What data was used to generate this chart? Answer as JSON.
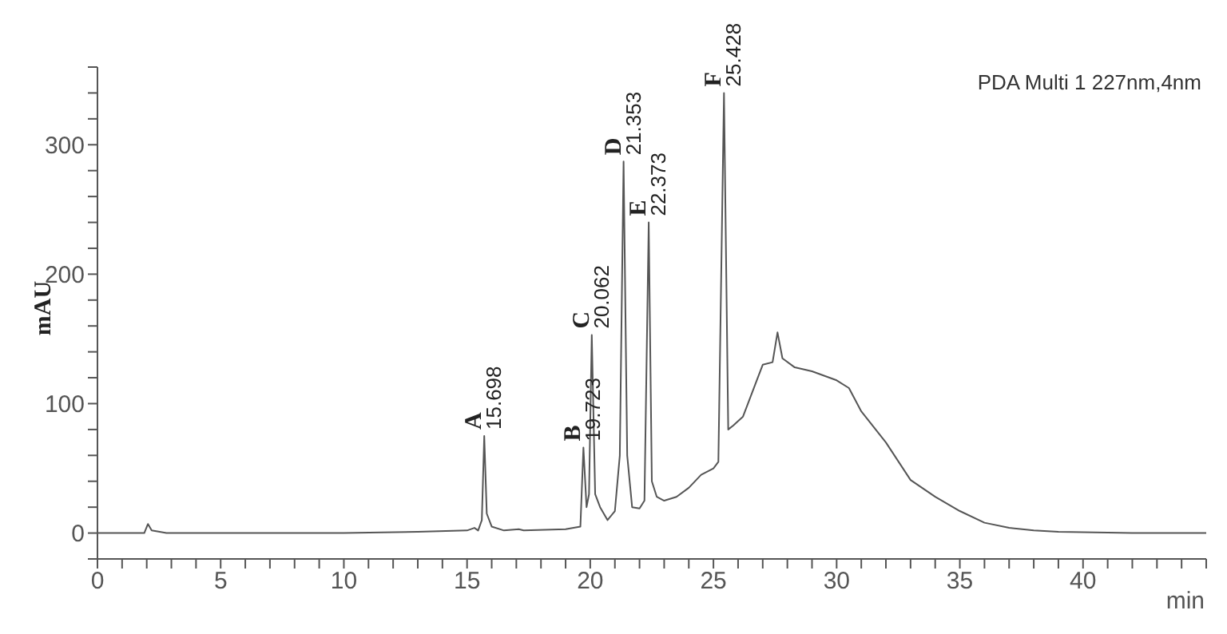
{
  "chart_data": {
    "type": "line",
    "xlabel": "min",
    "ylabel": "mAU",
    "x": [
      0,
      1.9,
      2.05,
      2.2,
      2.8,
      10,
      13,
      15,
      15.3,
      15.45,
      15.6,
      15.698,
      15.8,
      16,
      16.5,
      17.1,
      17.3,
      19,
      19.6,
      19.723,
      19.85,
      19.95,
      20.062,
      20.2,
      20.4,
      20.7,
      21.0,
      21.2,
      21.353,
      21.5,
      21.7,
      22.0,
      22.2,
      22.373,
      22.5,
      22.7,
      23,
      23.5,
      24,
      24.5,
      25,
      25.2,
      25.428,
      25.6,
      25.8,
      26.2,
      26.7,
      27,
      27.4,
      27.6,
      27.8,
      28.3,
      29,
      30,
      30.5,
      31,
      32,
      33,
      34,
      35,
      36,
      37,
      38,
      39,
      42,
      45
    ],
    "series": [
      {
        "color": "#555555",
        "values": [
          0,
          0,
          7,
          2,
          0,
          0,
          1,
          2,
          4,
          2,
          10,
          75,
          15,
          5,
          2,
          3,
          2,
          3,
          5,
          66,
          20,
          30,
          153,
          30,
          20,
          10,
          17,
          60,
          287,
          60,
          20,
          19,
          25,
          240,
          40,
          28,
          25,
          28,
          35,
          45,
          50,
          55,
          340,
          80,
          83,
          90,
          115,
          130,
          132,
          155,
          135,
          128,
          125,
          118,
          112,
          94,
          70,
          41,
          28,
          17,
          8,
          4,
          2,
          1,
          0,
          0
        ]
      }
    ],
    "xlim": [
      0,
      45
    ],
    "xticks": [
      0,
      {
        "value": 1,
        "label": null
      },
      {
        "value": 2,
        "label": null
      },
      {
        "value": 3,
        "label": null
      },
      {
        "value": 4,
        "label": null
      },
      5,
      {
        "value": 6,
        "label": null
      },
      {
        "value": 7,
        "label": null
      },
      {
        "value": 8,
        "label": null
      },
      {
        "value": 9,
        "label": null
      },
      10,
      {
        "value": 11,
        "label": null
      },
      {
        "value": 12,
        "label": null
      },
      {
        "value": 13,
        "label": null
      },
      {
        "value": 14,
        "label": null
      },
      15,
      {
        "value": 16,
        "label": null
      },
      {
        "value": 17,
        "label": null
      },
      {
        "value": 18,
        "label": null
      },
      {
        "value": 19,
        "label": null
      },
      20,
      {
        "value": 21,
        "label": null
      },
      {
        "value": 22,
        "label": null
      },
      {
        "value": 23,
        "label": null
      },
      {
        "value": 24,
        "label": null
      },
      25,
      {
        "value": 26,
        "label": null
      },
      {
        "value": 27,
        "label": null
      },
      {
        "value": 28,
        "label": null
      },
      {
        "value": 29,
        "label": null
      },
      30,
      {
        "value": 31,
        "label": null
      },
      {
        "value": 32,
        "label": null
      },
      {
        "value": 33,
        "label": null
      },
      {
        "value": 34,
        "label": null
      },
      35,
      {
        "value": 36,
        "label": null
      },
      {
        "value": 37,
        "label": null
      },
      {
        "value": 38,
        "label": null
      },
      {
        "value": 39,
        "label": null
      },
      40,
      {
        "value": 41,
        "label": null
      },
      {
        "value": 42,
        "label": null
      },
      {
        "value": 43,
        "label": null
      },
      {
        "value": 44,
        "label": null
      },
      {
        "value": 45,
        "label": null
      }
    ],
    "ylim": [
      -20,
      360
    ],
    "yticks": [
      {
        "value": -20,
        "label": null
      },
      0,
      {
        "value": 20,
        "label": null
      },
      {
        "value": 40,
        "label": null
      },
      {
        "value": 60,
        "label": null
      },
      {
        "value": 80,
        "label": null
      },
      100,
      {
        "value": 120,
        "label": null
      },
      {
        "value": 140,
        "label": null
      },
      {
        "value": 160,
        "label": null
      },
      {
        "value": 180,
        "label": null
      },
      200,
      {
        "value": 220,
        "label": null
      },
      {
        "value": 240,
        "label": null
      },
      {
        "value": 260,
        "label": null
      },
      {
        "value": 280,
        "label": null
      },
      300,
      {
        "value": 320,
        "label": null
      },
      {
        "value": 340,
        "label": null
      },
      {
        "value": 360,
        "label": null
      }
    ],
    "grid": false,
    "marker": "none",
    "line_style": "solid",
    "annotations": [
      "PDA Multi 1 227nm,4nm",
      {
        "text": "A",
        "x": 15.698,
        "y": 75
      },
      {
        "text": "15.698",
        "x": 15.698,
        "y": 75
      },
      {
        "text": "B",
        "x": 19.723,
        "y": 66
      },
      {
        "text": "19.723",
        "x": 19.723,
        "y": 66
      },
      {
        "text": "C",
        "x": 20.062,
        "y": 153
      },
      {
        "text": "20.062",
        "x": 20.062,
        "y": 153
      },
      {
        "text": "D",
        "x": 21.353,
        "y": 287
      },
      {
        "text": "21.353",
        "x": 21.353,
        "y": 287
      },
      {
        "text": "E",
        "x": 22.373,
        "y": 240
      },
      {
        "text": "22.373",
        "x": 22.373,
        "y": 240
      },
      {
        "text": "F",
        "x": 25.428,
        "y": 340
      },
      {
        "text": "25.428",
        "x": 25.428,
        "y": 340
      }
    ]
  }
}
